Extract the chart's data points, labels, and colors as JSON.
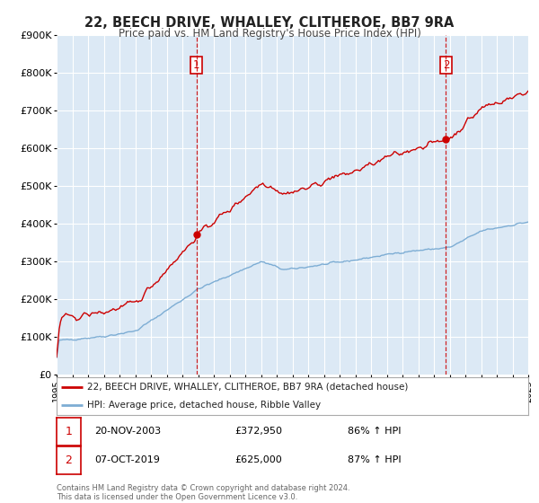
{
  "title": "22, BEECH DRIVE, WHALLEY, CLITHEROE, BB7 9RA",
  "subtitle": "Price paid vs. HM Land Registry's House Price Index (HPI)",
  "background_color": "#ffffff",
  "plot_bg_color": "#dce9f5",
  "grid_color": "#ffffff",
  "red_line_color": "#cc0000",
  "blue_line_color": "#7dadd4",
  "sale1_date": 2003.9,
  "sale1_price": 372950,
  "sale2_date": 2019.77,
  "sale2_price": 625000,
  "ylim": [
    0,
    900000
  ],
  "xlim": [
    1995,
    2025
  ],
  "yticks": [
    0,
    100000,
    200000,
    300000,
    400000,
    500000,
    600000,
    700000,
    800000,
    900000
  ],
  "ytick_labels": [
    "£0",
    "£100K",
    "£200K",
    "£300K",
    "£400K",
    "£500K",
    "£600K",
    "£700K",
    "£800K",
    "£900K"
  ],
  "legend_label_red": "22, BEECH DRIVE, WHALLEY, CLITHEROE, BB7 9RA (detached house)",
  "legend_label_blue": "HPI: Average price, detached house, Ribble Valley",
  "sale1_info": "20-NOV-2003",
  "sale1_price_str": "£372,950",
  "sale1_pct": "86% ↑ HPI",
  "sale2_info": "07-OCT-2019",
  "sale2_price_str": "£625,000",
  "sale2_pct": "87% ↑ HPI",
  "footer1": "Contains HM Land Registry data © Crown copyright and database right 2024.",
  "footer2": "This data is licensed under the Open Government Licence v3.0."
}
